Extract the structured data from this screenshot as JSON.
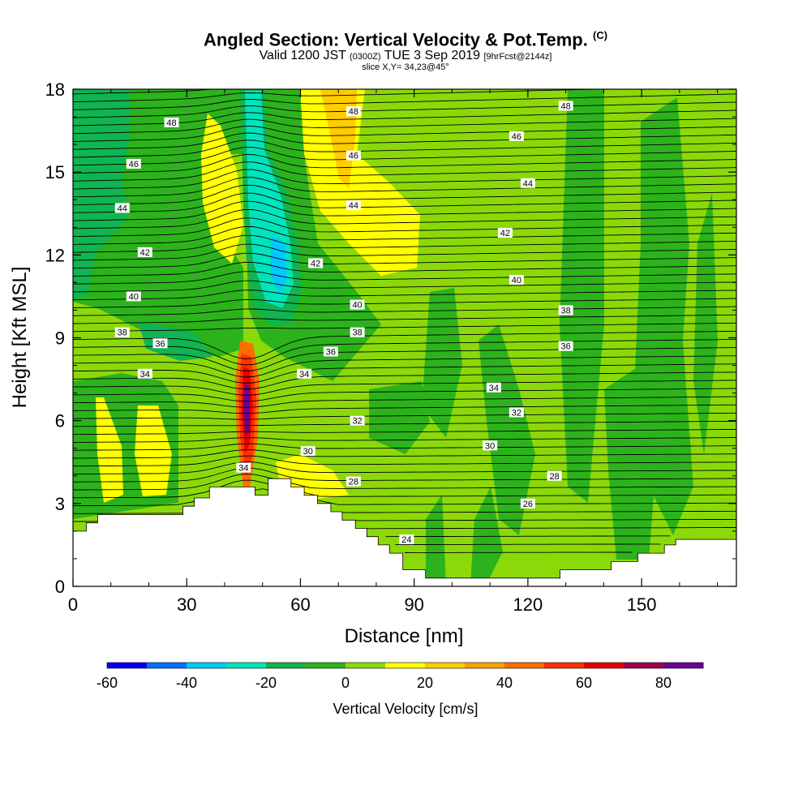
{
  "title": {
    "main": "Angled Section: Vertical Velocity & Pot.Temp.",
    "main_unit": "(C)",
    "valid_prefix": "Valid 1200 JST",
    "valid_utc": "(0300Z)",
    "valid_date": "TUE 3 Sep 2019",
    "forecast": "[9hrFcst@2144z]",
    "slice": "slice X,Y= 34,23@45°"
  },
  "chart_data": {
    "type": "heatmap",
    "xlabel": "Distance [nm]",
    "ylabel": "Height [Kft MSL]",
    "xlim": [
      0,
      175
    ],
    "ylim": [
      0,
      18
    ],
    "x_ticks": [
      0,
      30,
      60,
      90,
      120,
      150
    ],
    "y_ticks": [
      0,
      3,
      6,
      9,
      12,
      15,
      18
    ],
    "colorbar": {
      "label": "Vertical Velocity [cm/s]",
      "min": -60,
      "max": 90,
      "step": 10,
      "tick_values": [
        -60,
        -40,
        -20,
        0,
        20,
        40,
        60,
        80
      ],
      "colors": [
        "#0000ee",
        "#0070ff",
        "#00c8ff",
        "#00e4bc",
        "#10b450",
        "#2cb31c",
        "#8cd90a",
        "#ffff00",
        "#ffcc00",
        "#ffa000",
        "#ff6c00",
        "#ff3200",
        "#e60000",
        "#a0004c",
        "#6a0094"
      ]
    },
    "terrain_kft": [
      [
        0,
        2.0
      ],
      [
        3.5,
        2.0
      ],
      [
        3.5,
        2.3
      ],
      [
        6.5,
        2.3
      ],
      [
        6.5,
        2.6
      ],
      [
        29,
        2.6
      ],
      [
        29,
        2.9
      ],
      [
        32,
        2.9
      ],
      [
        32,
        3.2
      ],
      [
        36,
        3.2
      ],
      [
        36,
        3.6
      ],
      [
        48,
        3.6
      ],
      [
        48,
        3.3
      ],
      [
        51.5,
        3.3
      ],
      [
        51.5,
        3.9
      ],
      [
        57.5,
        3.9
      ],
      [
        57.5,
        3.6
      ],
      [
        61,
        3.6
      ],
      [
        61,
        3.3
      ],
      [
        64.5,
        3.3
      ],
      [
        64.5,
        3.0
      ],
      [
        68,
        3.0
      ],
      [
        68,
        2.7
      ],
      [
        71,
        2.7
      ],
      [
        71,
        2.4
      ],
      [
        74.5,
        2.4
      ],
      [
        74.5,
        2.1
      ],
      [
        77.5,
        2.1
      ],
      [
        77.5,
        1.8
      ],
      [
        80.5,
        1.8
      ],
      [
        80.5,
        1.5
      ],
      [
        83.5,
        1.5
      ],
      [
        83.5,
        1.2
      ],
      [
        87,
        1.2
      ],
      [
        87,
        0.6
      ],
      [
        93,
        0.6
      ],
      [
        93,
        0.3
      ],
      [
        128.5,
        0.3
      ],
      [
        128.5,
        0.6
      ],
      [
        142,
        0.6
      ],
      [
        142,
        0.9
      ],
      [
        149,
        0.9
      ],
      [
        149,
        1.2
      ],
      [
        156,
        1.2
      ],
      [
        156,
        1.5
      ],
      [
        159,
        1.5
      ],
      [
        159,
        1.7
      ],
      [
        175,
        1.7
      ]
    ],
    "max_updraft_cm_s": 90,
    "max_updraft_location": {
      "distance_nm": 45,
      "height_kft": 6.5
    },
    "isentropes_c": [
      24,
      26,
      28,
      30,
      32,
      34,
      36,
      38,
      40,
      42,
      44,
      46,
      48
    ],
    "contour_labels": [
      {
        "text": "48",
        "x": 26,
        "y": 16.8
      },
      {
        "text": "46",
        "x": 16,
        "y": 15.3
      },
      {
        "text": "44",
        "x": 13,
        "y": 13.7
      },
      {
        "text": "42",
        "x": 19,
        "y": 12.1
      },
      {
        "text": "40",
        "x": 16,
        "y": 10.5
      },
      {
        "text": "38",
        "x": 13,
        "y": 9.2
      },
      {
        "text": "36",
        "x": 23,
        "y": 8.8
      },
      {
        "text": "34",
        "x": 19,
        "y": 7.7
      },
      {
        "text": "48",
        "x": 74,
        "y": 17.2
      },
      {
        "text": "46",
        "x": 74,
        "y": 15.6
      },
      {
        "text": "44",
        "x": 74,
        "y": 13.8
      },
      {
        "text": "42",
        "x": 64,
        "y": 11.7
      },
      {
        "text": "40",
        "x": 75,
        "y": 10.2
      },
      {
        "text": "38",
        "x": 75,
        "y": 9.2
      },
      {
        "text": "36",
        "x": 68,
        "y": 8.5
      },
      {
        "text": "34",
        "x": 61,
        "y": 7.7
      },
      {
        "text": "32",
        "x": 75,
        "y": 6.0
      },
      {
        "text": "30",
        "x": 62,
        "y": 4.9
      },
      {
        "text": "28",
        "x": 74,
        "y": 3.8
      },
      {
        "text": "24",
        "x": 88,
        "y": 1.7
      },
      {
        "text": "34",
        "x": 45,
        "y": 4.3
      },
      {
        "text": "48",
        "x": 130,
        "y": 17.4
      },
      {
        "text": "46",
        "x": 117,
        "y": 16.3
      },
      {
        "text": "44",
        "x": 120,
        "y": 14.6
      },
      {
        "text": "42",
        "x": 114,
        "y": 12.8
      },
      {
        "text": "40",
        "x": 117,
        "y": 11.1
      },
      {
        "text": "38",
        "x": 130,
        "y": 10.0
      },
      {
        "text": "36",
        "x": 130,
        "y": 8.7
      },
      {
        "text": "34",
        "x": 111,
        "y": 7.2
      },
      {
        "text": "32",
        "x": 117,
        "y": 6.3
      },
      {
        "text": "30",
        "x": 110,
        "y": 5.1
      },
      {
        "text": "28",
        "x": 127,
        "y": 4.0
      },
      {
        "text": "26",
        "x": 120,
        "y": 3.0
      }
    ]
  }
}
